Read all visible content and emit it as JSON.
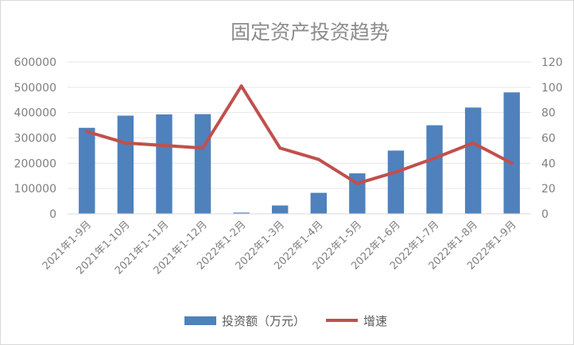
{
  "chart_data": {
    "type": "bar+line",
    "title": "固定资产投资趋势",
    "categories": [
      "2021年1-9月",
      "2021年1-10月",
      "2021年1-11月",
      "2021年1-12月",
      "2022年1-2月",
      "2022年1-3月",
      "2022年1-4月",
      "2022年1-5月",
      "2022年1-6月",
      "2022年1-7月",
      "2022年1-8月",
      "2022年1-9月"
    ],
    "series": [
      {
        "name": "投资额（万元）",
        "type": "bar",
        "axis": "left",
        "color": "#4f81bd",
        "values": [
          340000,
          388000,
          393000,
          394000,
          5000,
          33000,
          83000,
          160000,
          250000,
          350000,
          420000,
          480000
        ]
      },
      {
        "name": "增速",
        "type": "line",
        "axis": "right",
        "color": "#c0504d",
        "values": [
          65,
          56,
          54,
          52,
          101,
          52,
          43,
          24,
          33,
          44,
          56,
          40
        ]
      }
    ],
    "y_left": {
      "min": 0,
      "max": 600000,
      "ticks": [
        "0",
        "100000",
        "200000",
        "300000",
        "400000",
        "500000",
        "600000"
      ]
    },
    "y_right": {
      "min": 0,
      "max": 120,
      "ticks": [
        "0",
        "20",
        "40",
        "60",
        "80",
        "100",
        "120"
      ]
    },
    "grid": true,
    "legend": "bottom"
  }
}
